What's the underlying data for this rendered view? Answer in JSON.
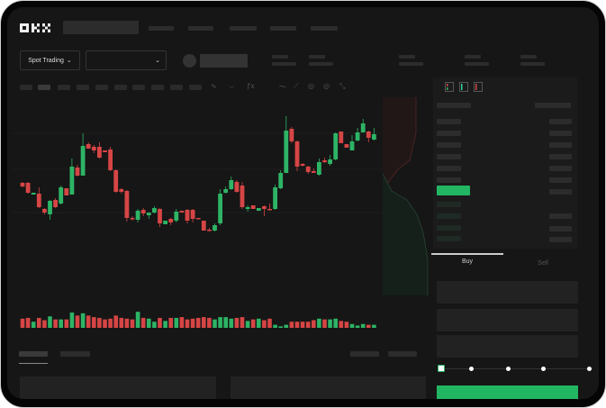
{
  "header": {
    "logo": "OKX"
  },
  "market": {
    "mode_label": "Spot Trading",
    "pair_dropdown_value": ""
  },
  "orderbook": {
    "view_icons": [
      "both-sides-icon",
      "bids-only-icon",
      "asks-only-icon"
    ]
  },
  "order_form": {
    "tabs": [
      {
        "label": "Buy",
        "active": true
      },
      {
        "label": "Sell",
        "active": false
      }
    ],
    "slider_percent": 0,
    "slider_steps": 5
  },
  "colors": {
    "up": "#2db465",
    "down": "#d64545",
    "background": "#161616",
    "accent": "#22b562"
  },
  "chart_data": {
    "type": "candlestick",
    "price_note": "",
    "candles": [
      {
        "o": 97,
        "c": 93,
        "h": 98,
        "l": 92
      },
      {
        "o": 97,
        "c": 86,
        "h": 98,
        "l": 85
      },
      {
        "o": 84,
        "c": 86,
        "h": 86,
        "l": 84
      },
      {
        "o": 85,
        "c": 70,
        "h": 92,
        "l": 69
      },
      {
        "o": 68,
        "c": 64,
        "h": 69,
        "l": 62
      },
      {
        "o": 62,
        "c": 77,
        "h": 78,
        "l": 56
      },
      {
        "o": 78,
        "c": 70,
        "h": 80,
        "l": 69
      },
      {
        "o": 74,
        "c": 92,
        "h": 94,
        "l": 73
      },
      {
        "o": 91,
        "c": 83,
        "h": 91,
        "l": 83
      },
      {
        "o": 84,
        "c": 115,
        "h": 124,
        "l": 84
      },
      {
        "o": 114,
        "c": 105,
        "h": 117,
        "l": 104
      },
      {
        "o": 105,
        "c": 138,
        "h": 152,
        "l": 105
      },
      {
        "o": 140,
        "c": 135,
        "h": 142,
        "l": 135
      },
      {
        "o": 137,
        "c": 133,
        "h": 139,
        "l": 130
      },
      {
        "o": 137,
        "c": 125,
        "h": 142,
        "l": 124
      },
      {
        "o": 133,
        "c": 131,
        "h": 133,
        "l": 131
      },
      {
        "o": 134,
        "c": 111,
        "h": 137,
        "l": 110
      },
      {
        "o": 111,
        "c": 87,
        "h": 112,
        "l": 86
      },
      {
        "o": 90,
        "c": 87,
        "h": 91,
        "l": 85
      },
      {
        "o": 88,
        "c": 58,
        "h": 89,
        "l": 54
      },
      {
        "o": 58,
        "c": 57,
        "h": 60,
        "l": 55
      },
      {
        "o": 56,
        "c": 66,
        "h": 68,
        "l": 53
      },
      {
        "o": 67,
        "c": 63,
        "h": 69,
        "l": 60
      },
      {
        "o": 61,
        "c": 64,
        "h": 64,
        "l": 57
      },
      {
        "o": 64,
        "c": 69,
        "h": 71,
        "l": 63
      },
      {
        "o": 68,
        "c": 52,
        "h": 69,
        "l": 48
      },
      {
        "o": 51,
        "c": 55,
        "h": 55,
        "l": 51
      },
      {
        "o": 57,
        "c": 53,
        "h": 58,
        "l": 50
      },
      {
        "o": 55,
        "c": 65,
        "h": 68,
        "l": 53
      },
      {
        "o": 66,
        "c": 64,
        "h": 66,
        "l": 64
      },
      {
        "o": 67,
        "c": 55,
        "h": 68,
        "l": 52
      },
      {
        "o": 67,
        "c": 57,
        "h": 68,
        "l": 53
      },
      {
        "o": 58,
        "c": 57,
        "h": 58,
        "l": 57
      },
      {
        "o": 55,
        "c": 44,
        "h": 55,
        "l": 44
      },
      {
        "o": 45,
        "c": 44,
        "h": 47,
        "l": 43
      },
      {
        "o": 44,
        "c": 50,
        "h": 52,
        "l": 43
      },
      {
        "o": 52,
        "c": 85,
        "h": 90,
        "l": 50
      },
      {
        "o": 86,
        "c": 90,
        "h": 93,
        "l": 85
      },
      {
        "o": 90,
        "c": 100,
        "h": 104,
        "l": 89
      },
      {
        "o": 98,
        "c": 87,
        "h": 100,
        "l": 86
      },
      {
        "o": 94,
        "c": 70,
        "h": 98,
        "l": 68
      },
      {
        "o": 68,
        "c": 70,
        "h": 72,
        "l": 65
      },
      {
        "o": 72,
        "c": 68,
        "h": 72,
        "l": 68
      },
      {
        "o": 66,
        "c": 69,
        "h": 69,
        "l": 66
      },
      {
        "o": 71,
        "c": 68,
        "h": 72,
        "l": 60
      },
      {
        "o": 68,
        "c": 67,
        "h": 74,
        "l": 67
      },
      {
        "o": 68,
        "c": 92,
        "h": 95,
        "l": 67
      },
      {
        "o": 91,
        "c": 108,
        "h": 111,
        "l": 90
      },
      {
        "o": 108,
        "c": 155,
        "h": 171,
        "l": 108
      },
      {
        "o": 157,
        "c": 143,
        "h": 159,
        "l": 141
      },
      {
        "o": 143,
        "c": 115,
        "h": 144,
        "l": 110
      },
      {
        "o": 118,
        "c": 116,
        "h": 119,
        "l": 115
      },
      {
        "o": 115,
        "c": 109,
        "h": 116,
        "l": 107
      },
      {
        "o": 110,
        "c": 108,
        "h": 113,
        "l": 108
      },
      {
        "o": 106,
        "c": 120,
        "h": 124,
        "l": 105
      },
      {
        "o": 122,
        "c": 120,
        "h": 125,
        "l": 119
      },
      {
        "o": 118,
        "c": 123,
        "h": 128,
        "l": 116
      },
      {
        "o": 123,
        "c": 152,
        "h": 153,
        "l": 122
      },
      {
        "o": 154,
        "c": 141,
        "h": 154,
        "l": 141
      },
      {
        "o": 140,
        "c": 136,
        "h": 140,
        "l": 136
      },
      {
        "o": 133,
        "c": 143,
        "h": 150,
        "l": 133
      },
      {
        "o": 144,
        "c": 153,
        "h": 158,
        "l": 143
      },
      {
        "o": 153,
        "c": 163,
        "h": 168,
        "l": 153
      },
      {
        "o": 154,
        "c": 147,
        "h": 155,
        "l": 142
      },
      {
        "o": 145,
        "c": 151,
        "h": 158,
        "l": 144
      }
    ],
    "volumes": [
      12,
      13,
      8,
      13,
      10,
      15,
      11,
      11,
      11,
      20,
      16,
      19,
      16,
      14,
      13,
      11,
      12,
      16,
      13,
      12,
      11,
      21,
      13,
      12,
      8,
      13,
      9,
      13,
      13,
      14,
      11,
      12,
      13,
      14,
      13,
      11,
      14,
      14,
      12,
      13,
      14,
      9,
      11,
      12,
      10,
      12,
      4,
      2,
      4,
      8,
      8,
      8,
      8,
      10,
      12,
      11,
      11,
      12,
      9,
      8,
      5,
      3,
      5,
      4,
      4
    ],
    "grid": true
  }
}
